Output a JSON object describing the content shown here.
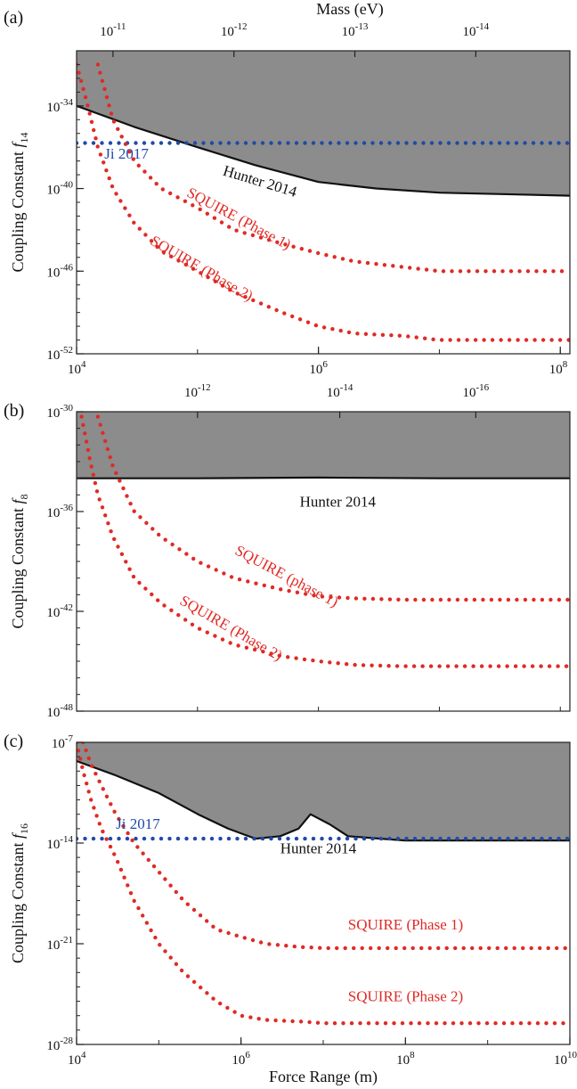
{
  "chart_data": [
    {
      "type": "line",
      "panel_label": "(a)",
      "ylabel_main": "Coupling Constant ",
      "ylabel_symbol": "f",
      "ylabel_sub": "14",
      "x_scale": "log",
      "y_scale": "log",
      "xlim": [
        10000,
        120000000
      ],
      "ylim": [
        1e-52,
        1e-30
      ],
      "x_ticks": [
        {
          "value": 10000,
          "base": "10",
          "exp": "4"
        },
        {
          "value": 1000000,
          "base": "10",
          "exp": "6"
        },
        {
          "value": 100000000,
          "base": "10",
          "exp": "8"
        }
      ],
      "y_ticks": [
        {
          "value": 1e-34,
          "base": "10",
          "exp": "-34"
        },
        {
          "value": 1e-40,
          "base": "10",
          "exp": "-40"
        },
        {
          "value": 1e-46,
          "base": "10",
          "exp": "-46"
        },
        {
          "value": 1e-52,
          "base": "10",
          "exp": "-52"
        }
      ],
      "top_axis": {
        "label": "Mass (eV)",
        "ticks": [
          {
            "value": 20000,
            "base": "10",
            "exp": "-11"
          },
          {
            "value": 200000,
            "base": "10",
            "exp": "-12"
          },
          {
            "value": 2000000,
            "base": "10",
            "exp": "-13"
          },
          {
            "value": 20000000,
            "base": "10",
            "exp": "-14"
          }
        ]
      },
      "excluded_region": {
        "color": "#8c8c8c",
        "boundary_series": "Hunter 2014"
      },
      "series": [
        {
          "name": "Hunter 2014",
          "style": "solid",
          "color": "#111111",
          "x": [
            10000,
            30000,
            100000,
            300000,
            1000000,
            3000000,
            10000000,
            30000000,
            120000000
          ],
          "y": [
            1e-34,
            3e-36,
            1e-37,
            5e-39,
            3e-40,
            1e-40,
            5e-41,
            4e-41,
            3e-41
          ]
        },
        {
          "name": "Ji 2017",
          "style": "dotted",
          "color": "#1f4aa8",
          "x": [
            10000,
            120000000
          ],
          "y": [
            2e-37,
            2e-37
          ]
        },
        {
          "name": "SQUIRE (Phase 1)",
          "style": "dotted",
          "color": "#e02a25",
          "x": [
            15000,
            20000,
            30000,
            50000,
            100000,
            200000,
            500000,
            1000000,
            2000000,
            5000000,
            10000000,
            120000000
          ],
          "y": [
            1e-31,
            1e-35,
            1e-38,
            1e-40,
            4e-42,
            1e-43,
            1e-44,
            2e-45,
            5e-46,
            2e-46,
            1e-46,
            1e-46
          ]
        },
        {
          "name": "SQUIRE (Phase 2)",
          "style": "dotted",
          "color": "#e02a25",
          "x": [
            10000,
            12000,
            15000,
            20000,
            30000,
            50000,
            100000,
            200000,
            500000,
            1000000,
            2000000,
            5000000,
            10000000,
            120000000
          ],
          "y": [
            1e-31,
            3e-34,
            1e-37,
            1e-40,
            3e-43,
            3e-45,
            1e-46,
            3e-48,
            1e-49,
            1e-50,
            3e-51,
            2e-51,
            1e-51,
            1e-51
          ]
        }
      ],
      "annotations": [
        {
          "text": "Ji 2017",
          "color": "#1f4aa8",
          "x": 17000,
          "y": 1.5e-38,
          "angle": 0
        },
        {
          "text": "Hunter 2014",
          "color": "#111111",
          "x": 160000,
          "y": 1e-39,
          "angle": 17
        },
        {
          "text": "SQUIRE (Phase 1)",
          "color": "#e02a25",
          "x": 80000,
          "y": 3e-41,
          "angle": 28
        },
        {
          "text": "SQUIRE (Phase 2)",
          "color": "#e02a25",
          "x": 40000,
          "y": 1e-44,
          "angle": 30
        }
      ]
    },
    {
      "type": "line",
      "panel_label": "(b)",
      "ylabel_main": "Coupling Constant ",
      "ylabel_symbol": "f",
      "ylabel_sub": "8",
      "x_scale": "log",
      "y_scale": "log",
      "xlim": [
        10000,
        120000000
      ],
      "ylim": [
        1e-48,
        1e-30
      ],
      "x_ticks": [],
      "y_ticks": [
        {
          "value": 1e-30,
          "base": "10",
          "exp": "-30"
        },
        {
          "value": 1e-36,
          "base": "10",
          "exp": "-36"
        },
        {
          "value": 1e-42,
          "base": "10",
          "exp": "-42"
        },
        {
          "value": 1e-48,
          "base": "10",
          "exp": "-48"
        }
      ],
      "top_axis": {
        "label": "",
        "ticks": [
          {
            "value": 100000,
            "base": "10",
            "exp": "-12"
          },
          {
            "value": 1500000,
            "base": "10",
            "exp": "-14"
          },
          {
            "value": 20000000,
            "base": "10",
            "exp": "-16"
          }
        ]
      },
      "excluded_region": {
        "color": "#8c8c8c",
        "boundary_series": "Hunter 2014"
      },
      "series": [
        {
          "name": "Hunter 2014",
          "style": "solid",
          "color": "#111111",
          "x": [
            10000,
            100000,
            1000000,
            10000000,
            120000000
          ],
          "y": [
            1e-34,
            1e-34,
            1.1e-34,
            1e-34,
            1e-34
          ]
        },
        {
          "name": "SQUIRE (phase 1)",
          "style": "dotted",
          "color": "#e02a25",
          "x": [
            15000,
            20000,
            30000,
            50000,
            100000,
            200000,
            500000,
            1000000,
            2000000,
            5000000,
            10000000,
            120000000
          ],
          "y": [
            5e-31,
            5e-34,
            1e-36,
            3e-38,
            1e-39,
            1e-40,
            2e-41,
            8e-42,
            6e-42,
            5e-42,
            5e-42,
            5e-42
          ]
        },
        {
          "name": "SQUIRE (Phase 2)",
          "style": "dotted",
          "color": "#e02a25",
          "x": [
            11000,
            13000,
            15000,
            20000,
            30000,
            50000,
            100000,
            200000,
            500000,
            1000000,
            2000000,
            5000000,
            10000000,
            120000000
          ],
          "y": [
            5e-31,
            1e-33,
            1e-35,
            3e-38,
            1e-40,
            3e-42,
            1e-43,
            1e-44,
            2e-45,
            1e-45,
            6e-46,
            5e-46,
            5e-46,
            5e-46
          ]
        }
      ],
      "annotations": [
        {
          "text": "Hunter 2014",
          "color": "#111111",
          "x": 700000,
          "y": 2e-36,
          "angle": 0
        },
        {
          "text": "SQUIRE (phase 1)",
          "color": "#e02a25",
          "x": 200000,
          "y": 3e-39,
          "angle": 28
        },
        {
          "text": "SQUIRE (Phase 2)",
          "color": "#e02a25",
          "x": 70000,
          "y": 3e-42,
          "angle": 30
        }
      ]
    },
    {
      "type": "line",
      "panel_label": "(c)",
      "ylabel_main": "Coupling Constant ",
      "ylabel_symbol": "f",
      "ylabel_sub": "16",
      "xlabel": "Force Range (m)",
      "x_scale": "log",
      "y_scale": "log",
      "xlim": [
        10000,
        10000000000
      ],
      "ylim": [
        1e-28,
        1e-07
      ],
      "x_ticks": [
        {
          "value": 10000,
          "base": "10",
          "exp": "4"
        },
        {
          "value": 1000000,
          "base": "10",
          "exp": "6"
        },
        {
          "value": 100000000,
          "base": "10",
          "exp": "8"
        },
        {
          "value": 10000000000,
          "base": "10",
          "exp": "10"
        }
      ],
      "y_ticks": [
        {
          "value": 1e-07,
          "base": "10",
          "exp": "-7"
        },
        {
          "value": 1e-14,
          "base": "10",
          "exp": "-14"
        },
        {
          "value": 1e-21,
          "base": "10",
          "exp": "-21"
        },
        {
          "value": 1e-28,
          "base": "10",
          "exp": "-28"
        }
      ],
      "top_axis": {
        "label": "",
        "ticks": []
      },
      "excluded_region": {
        "color": "#8c8c8c",
        "boundary_series": "Hunter 2014"
      },
      "series": [
        {
          "name": "Hunter 2014",
          "style": "solid",
          "color": "#111111",
          "x": [
            10000,
            30000,
            100000,
            300000,
            700000,
            1500000,
            3000000,
            5000000,
            7000000,
            12000000,
            20000000,
            50000000,
            100000000,
            1000000000,
            10000000000
          ],
          "y": [
            5e-09,
            5e-10,
            3e-11,
            1e-12,
            1e-13,
            2e-14,
            3e-14,
            1e-13,
            1e-12,
            2e-13,
            3e-14,
            2e-14,
            1.5e-14,
            1.5e-14,
            1.5e-14
          ]
        },
        {
          "name": "Ji 2017",
          "style": "dotted",
          "color": "#1f4aa8",
          "x": [
            10000,
            10000000000
          ],
          "y": [
            2e-14,
            2e-14
          ]
        },
        {
          "name": "SQUIRE (Phase 1)",
          "style": "dotted",
          "color": "#e02a25",
          "x": [
            12000,
            15000,
            20000,
            30000,
            50000,
            100000,
            200000,
            500000,
            1000000,
            2000000,
            5000000,
            10000000,
            10000000000
          ],
          "y": [
            1e-07,
            3e-09,
            1e-10,
            1e-12,
            1e-14,
            1e-16,
            1e-18,
            1e-20,
            3e-21,
            1e-21,
            6e-22,
            5e-22,
            5e-22
          ]
        },
        {
          "name": "SQUIRE (Phase 2)",
          "style": "dotted",
          "color": "#e02a25",
          "x": [
            10000,
            12000,
            15000,
            20000,
            30000,
            50000,
            100000,
            200000,
            500000,
            1000000,
            2000000,
            5000000,
            10000000,
            10000000000
          ],
          "y": [
            1e-07,
            1e-09,
            1e-11,
            1e-13,
            1e-15,
            1e-18,
            1e-21,
            1e-23,
            1e-25,
            1e-26,
            5e-27,
            4e-27,
            3e-27,
            3e-27
          ]
        }
      ],
      "annotations": [
        {
          "text": "Ji 2017",
          "color": "#1f4aa8",
          "x": 30000,
          "y": 1e-13,
          "angle": 0
        },
        {
          "text": "Hunter 2014",
          "color": "#111111",
          "x": 3000000,
          "y": 2e-15,
          "angle": 0
        },
        {
          "text": "SQUIRE (Phase 1)",
          "color": "#e02a25",
          "x": 20000000,
          "y": 1e-20,
          "angle": 0
        },
        {
          "text": "SQUIRE (Phase 2)",
          "color": "#e02a25",
          "x": 20000000,
          "y": 1e-25,
          "angle": 0
        }
      ]
    }
  ]
}
